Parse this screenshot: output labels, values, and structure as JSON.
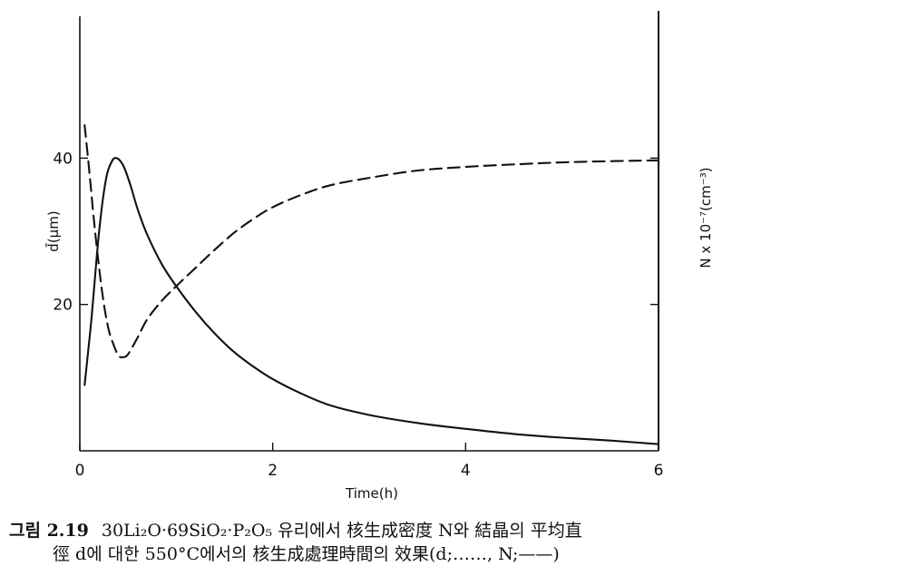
{
  "chart_data": {
    "type": "line",
    "xlabel": "Time(h)",
    "ylabel_left": "d̄(μm)",
    "ylabel_right": "N x 10⁻⁷(cm⁻³)",
    "xlim": [
      0,
      6
    ],
    "ylim_left": [
      0,
      60
    ],
    "x_ticks": [
      {
        "value": 0,
        "label": "0"
      },
      {
        "value": 2,
        "label": "2"
      },
      {
        "value": 4,
        "label": "4"
      },
      {
        "value": 6,
        "label": "6"
      }
    ],
    "y_ticks_left": [
      {
        "value": 20,
        "label": "20"
      },
      {
        "value": 40,
        "label": "40"
      }
    ],
    "y_ticks_right_values": [
      20,
      40
    ],
    "grid": false,
    "series": [
      {
        "style": "solid",
        "x": [
          0.05,
          0.12,
          0.2,
          0.27,
          0.33,
          0.38,
          0.45,
          0.52,
          0.6,
          0.7,
          0.85,
          1.0,
          1.2,
          1.4,
          1.6,
          1.8,
          2.0,
          2.3,
          2.6,
          3.0,
          3.5,
          4.0,
          4.5,
          5.0,
          5.5,
          6.0
        ],
        "y": [
          9,
          18,
          30,
          37,
          39.5,
          40,
          39,
          36.5,
          33,
          29.5,
          25.5,
          22.5,
          19,
          16,
          13.5,
          11.5,
          9.8,
          7.8,
          6.2,
          4.9,
          3.8,
          3.0,
          2.3,
          1.8,
          1.4,
          0.9
        ]
      },
      {
        "style": "dashed",
        "x": [
          0.05,
          0.1,
          0.15,
          0.2,
          0.25,
          0.3,
          0.35,
          0.4,
          0.45,
          0.5,
          0.6,
          0.7,
          0.85,
          1.0,
          1.2,
          1.4,
          1.6,
          1.8,
          2.0,
          2.3,
          2.6,
          3.0,
          3.5,
          4.0,
          4.6,
          5.2,
          6.0
        ],
        "y": [
          44.5,
          38,
          31,
          25,
          20,
          16.5,
          14.5,
          13,
          12.8,
          13.2,
          15.5,
          18,
          20.5,
          22.5,
          25,
          27.5,
          29.8,
          31.7,
          33.3,
          35,
          36.3,
          37.3,
          38.3,
          38.8,
          39.2,
          39.5,
          39.7
        ]
      }
    ]
  },
  "caption": {
    "label": "그림 2.19",
    "line1": "30Li₂O·69SiO₂·P₂O₅ 유리에서 核生成密度 N와 結晶의 平均直",
    "line2": "徑 d에 대한 550°C에서의 核生成處理時間의 效果(d;……, N;——)"
  }
}
